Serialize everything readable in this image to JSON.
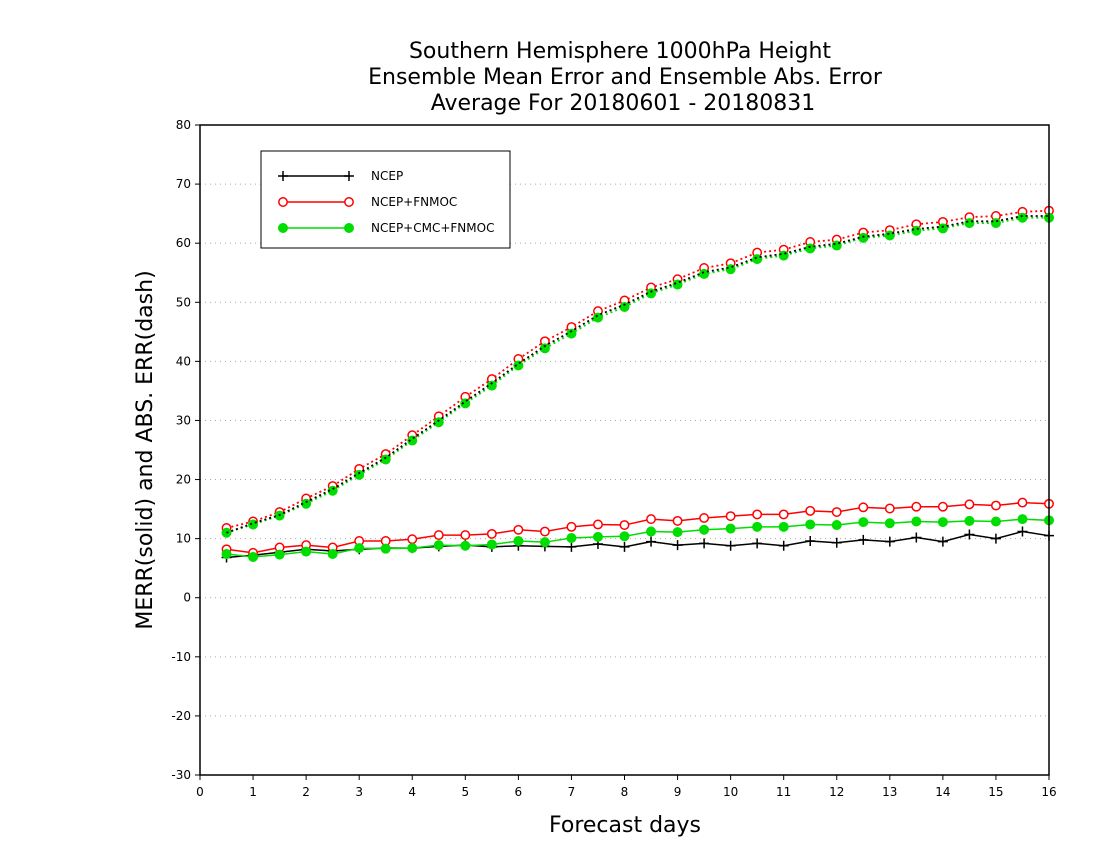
{
  "chart_data": {
    "type": "line",
    "title_lines": [
      "Southern Hemisphere 1000hPa Height",
      "Ensemble Mean Error and Ensemble Abs. Error",
      "Average For 20180601 - 20180831"
    ],
    "xlabel": "Forecast days",
    "ylabel": "MERR(solid) and ABS. ERR(dash)",
    "xlim": [
      0,
      16
    ],
    "ylim": [
      -30,
      80
    ],
    "xticks": [
      "0",
      "1",
      "2",
      "3",
      "4",
      "5",
      "6",
      "7",
      "8",
      "9",
      "10",
      "11",
      "12",
      "13",
      "14",
      "15",
      "16"
    ],
    "yticks": [
      "-30",
      "-20",
      "-10",
      "0",
      "10",
      "20",
      "30",
      "40",
      "50",
      "60",
      "70",
      "80"
    ],
    "grid": true,
    "legend_position": "top-left",
    "x": [
      0.5,
      1,
      1.5,
      2,
      2.5,
      3,
      3.5,
      4,
      4.5,
      5,
      5.5,
      6,
      6.5,
      7,
      7.5,
      8,
      8.5,
      9,
      9.5,
      10,
      10.5,
      11,
      11.5,
      12,
      12.5,
      13,
      13.5,
      14,
      14.5,
      15,
      15.5,
      16
    ],
    "series": [
      {
        "name": "NCEP",
        "color": "#000000",
        "marker": "plus",
        "style": "solid",
        "values": [
          6.8,
          7.2,
          7.7,
          8.2,
          7.9,
          8.2,
          8.4,
          8.4,
          8.7,
          8.9,
          8.6,
          8.8,
          8.7,
          8.6,
          9.1,
          8.6,
          9.5,
          8.9,
          9.2,
          8.8,
          9.2,
          8.8,
          9.6,
          9.3,
          9.8,
          9.5,
          10.2,
          9.5,
          10.7,
          10.0,
          11.2,
          10.5
        ]
      },
      {
        "name": "NCEP+FNMOC",
        "color": "#ff0000",
        "marker": "open-circle",
        "style": "solid",
        "values": [
          8.2,
          7.6,
          8.5,
          8.9,
          8.5,
          9.6,
          9.6,
          9.9,
          10.6,
          10.6,
          10.8,
          11.5,
          11.2,
          12.0,
          12.4,
          12.3,
          13.3,
          13.0,
          13.5,
          13.8,
          14.1,
          14.1,
          14.7,
          14.5,
          15.3,
          15.1,
          15.4,
          15.4,
          15.8,
          15.6,
          16.1,
          15.9
        ]
      },
      {
        "name": "NCEP+CMC+FNMOC",
        "color": "#00dd00",
        "marker": "filled-circle",
        "style": "solid",
        "values": [
          7.4,
          6.9,
          7.3,
          7.8,
          7.4,
          8.4,
          8.3,
          8.4,
          8.9,
          8.8,
          9.0,
          9.6,
          9.4,
          10.1,
          10.3,
          10.4,
          11.2,
          11.1,
          11.5,
          11.7,
          12.0,
          12.0,
          12.4,
          12.3,
          12.8,
          12.6,
          12.9,
          12.8,
          13.0,
          12.9,
          13.3,
          13.1
        ]
      },
      {
        "name": "",
        "color": "#ff0000",
        "marker": "open-circle",
        "style": "dotted",
        "values": [
          11.8,
          12.9,
          14.5,
          16.8,
          18.9,
          21.8,
          24.3,
          27.5,
          30.7,
          34.0,
          37.0,
          40.4,
          43.4,
          45.8,
          48.5,
          50.3,
          52.5,
          53.9,
          55.8,
          56.6,
          58.4,
          58.9,
          60.2,
          60.6,
          61.8,
          62.2,
          63.2,
          63.6,
          64.4,
          64.6,
          65.3,
          65.5
        ]
      },
      {
        "name": "",
        "color": "#00dd00",
        "marker": "filled-circle",
        "style": "dotted",
        "values": [
          11.0,
          12.4,
          13.9,
          15.9,
          18.1,
          20.8,
          23.4,
          26.6,
          29.7,
          32.9,
          35.9,
          39.3,
          42.2,
          44.7,
          47.4,
          49.2,
          51.5,
          53.0,
          54.8,
          55.6,
          57.3,
          57.9,
          59.1,
          59.6,
          60.9,
          61.3,
          62.1,
          62.5,
          63.4,
          63.4,
          64.3,
          64.3
        ]
      },
      {
        "name": "",
        "color": "#000000",
        "marker": "none",
        "style": "dotted",
        "values": [
          11.0,
          12.6,
          14.0,
          16.2,
          18.4,
          21.1,
          23.7,
          26.9,
          30.0,
          33.2,
          36.3,
          39.6,
          42.6,
          45.1,
          47.8,
          49.6,
          51.8,
          53.3,
          55.1,
          55.9,
          57.6,
          58.2,
          59.4,
          59.9,
          61.1,
          61.6,
          62.4,
          62.8,
          63.7,
          63.7,
          64.6,
          64.6
        ]
      }
    ]
  }
}
